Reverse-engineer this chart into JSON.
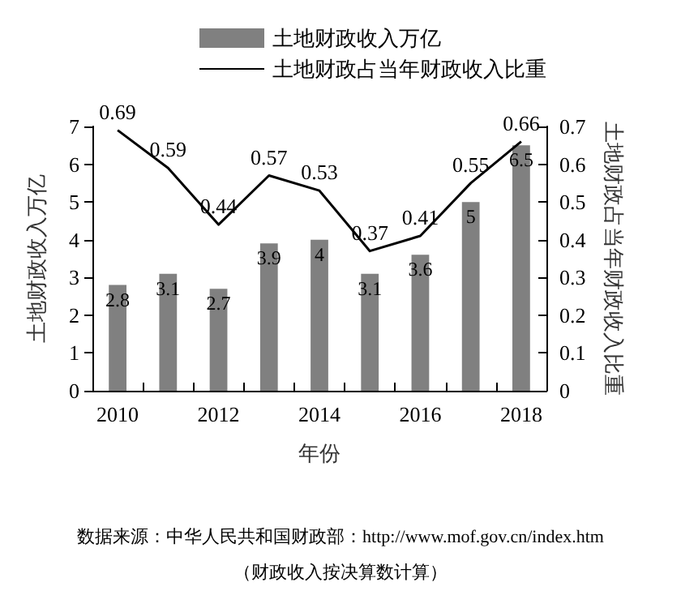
{
  "chart_data": {
    "type": "bar",
    "categories": [
      "2010",
      null,
      "2012",
      null,
      "2014",
      null,
      "2016",
      null,
      "2018"
    ],
    "series": [
      {
        "name": "土地财政收入万亿",
        "color": "#808080",
        "values": [
          2.8,
          3.1,
          2.7,
          3.9,
          4,
          3.1,
          3.6,
          5,
          6.5
        ]
      },
      {
        "name": "土地财政占当年财政收入比重",
        "type": "line",
        "axis": "y2",
        "color": "#000000",
        "values": [
          0.69,
          0.59,
          0.44,
          0.57,
          0.53,
          0.37,
          0.41,
          0.55,
          0.66
        ]
      }
    ],
    "xlabel": "年份",
    "ylabel": "土地财政收入万亿",
    "y2label": "土地财政占当年财政收入比重",
    "ylim": [
      0,
      7
    ],
    "yticks": [
      0,
      1,
      2,
      3,
      4,
      5,
      6,
      7
    ],
    "y2lim": [
      0,
      0.7
    ],
    "y2ticks": [
      0,
      0.1,
      0.2,
      0.3,
      0.4,
      0.5,
      0.6,
      0.7
    ],
    "data_labels": true,
    "legend": "top",
    "marker": "none",
    "line_style": "solid",
    "grid": false,
    "annotations": [
      "数据来源：中华人民共和国财政部：http://www.mof.gov.cn/index.htm",
      "（财政收入按决算数计算）"
    ]
  }
}
